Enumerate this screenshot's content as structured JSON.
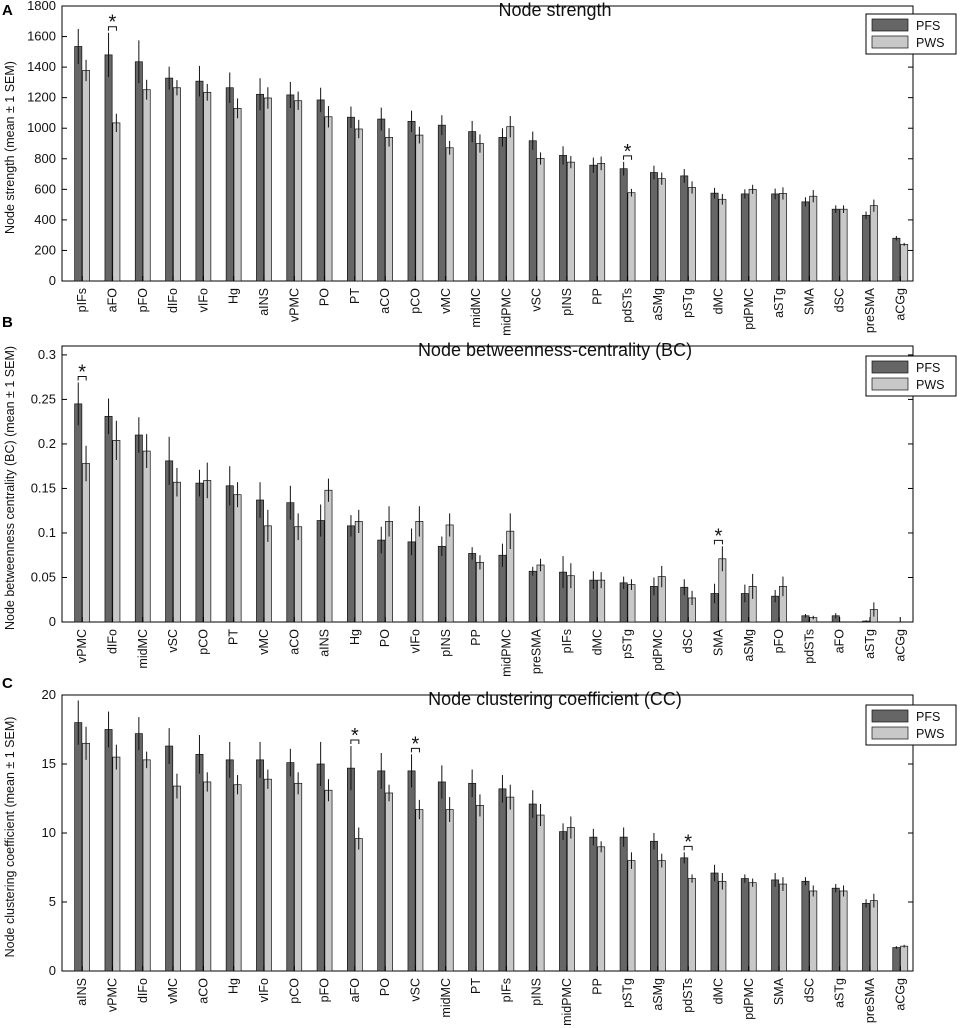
{
  "chart_data": [
    {
      "type": "bar",
      "panel": "A",
      "title": "Node strength",
      "ylabel": "Node strength (mean ± 1 SEM)",
      "ylim": [
        0,
        1800
      ],
      "yticks": [
        0,
        200,
        400,
        600,
        800,
        1000,
        1200,
        1400,
        1600,
        1800
      ],
      "legend": [
        "PFS",
        "PWS"
      ],
      "legend_position": "top-right",
      "categories": [
        "pIFs",
        "aFO",
        "pFO",
        "dIFo",
        "vIFo",
        "Hg",
        "aINS",
        "vPMC",
        "PO",
        "PT",
        "aCO",
        "pCO",
        "vMC",
        "midMC",
        "midPMC",
        "vSC",
        "pINS",
        "PP",
        "pdSTs",
        "aSMg",
        "pSTg",
        "dMC",
        "pdPMC",
        "aSTg",
        "SMA",
        "dSC",
        "preSMA",
        "aCGg"
      ],
      "series": [
        {
          "name": "PFS",
          "color": "#666666",
          "values": [
            1535,
            1480,
            1435,
            1328,
            1308,
            1265,
            1222,
            1218,
            1185,
            1072,
            1060,
            1045,
            1020,
            978,
            940,
            918,
            822,
            758,
            735,
            710,
            688,
            575,
            570,
            570,
            518,
            470,
            430,
            280
          ],
          "errors": [
            115,
            145,
            140,
            75,
            100,
            100,
            105,
            85,
            80,
            70,
            75,
            70,
            65,
            70,
            60,
            60,
            60,
            50,
            45,
            45,
            45,
            35,
            30,
            35,
            30,
            25,
            25,
            15
          ]
        },
        {
          "name": "PWS",
          "color": "#c8c8c8",
          "values": [
            1378,
            1035,
            1252,
            1265,
            1235,
            1130,
            1198,
            1180,
            1075,
            995,
            940,
            955,
            872,
            900,
            1010,
            802,
            778,
            770,
            578,
            670,
            612,
            535,
            600,
            573,
            555,
            470,
            493,
            240
          ],
          "errors": [
            70,
            60,
            65,
            50,
            55,
            65,
            70,
            60,
            70,
            60,
            60,
            55,
            45,
            60,
            70,
            40,
            40,
            45,
            25,
            40,
            40,
            35,
            30,
            40,
            40,
            25,
            40,
            10
          ]
        }
      ],
      "significant": [
        "aFO",
        "pdSTs"
      ]
    },
    {
      "type": "bar",
      "panel": "B",
      "title": "Node betweenness-centrality (BC)",
      "ylabel": "Node betweenness centrality (BC) (mean ± 1 SEM)",
      "ylim": [
        0,
        0.31
      ],
      "yticks": [
        0,
        0.05,
        0.1,
        0.15,
        0.2,
        0.25,
        0.3
      ],
      "legend": [
        "PFS",
        "PWS"
      ],
      "legend_position": "top-right",
      "categories": [
        "vPMC",
        "dIFo",
        "midMC",
        "vSC",
        "pCO",
        "PT",
        "vMC",
        "aCO",
        "aINS",
        "Hg",
        "PO",
        "vIFo",
        "pINS",
        "PP",
        "midPMC",
        "preSMA",
        "pIFs",
        "dMC",
        "pSTg",
        "pdPMC",
        "dSC",
        "SMA",
        "aSMg",
        "pFO",
        "pdSTs",
        "aFO",
        "aSTg",
        "aCGg"
      ],
      "series": [
        {
          "name": "PFS",
          "color": "#666666",
          "values": [
            0.245,
            0.231,
            0.21,
            0.181,
            0.156,
            0.153,
            0.137,
            0.134,
            0.114,
            0.108,
            0.092,
            0.09,
            0.085,
            0.077,
            0.075,
            0.057,
            0.056,
            0.047,
            0.044,
            0.04,
            0.039,
            0.032,
            0.032,
            0.029,
            0.007,
            0.007,
            0.001,
            0
          ],
          "errors": [
            0.024,
            0.02,
            0.02,
            0.027,
            0.015,
            0.022,
            0.02,
            0.019,
            0.018,
            0.012,
            0.015,
            0.015,
            0.011,
            0.007,
            0.013,
            0.005,
            0.018,
            0.01,
            0.007,
            0.01,
            0.009,
            0.011,
            0.01,
            0.007,
            0.002,
            0.003,
            0.001,
            0
          ]
        },
        {
          "name": "PWS",
          "color": "#c8c8c8",
          "values": [
            0.178,
            0.204,
            0.192,
            0.157,
            0.159,
            0.143,
            0.108,
            0.107,
            0.148,
            0.113,
            0.113,
            0.113,
            0.109,
            0.067,
            0.102,
            0.064,
            0.052,
            0.047,
            0.042,
            0.051,
            0.027,
            0.071,
            0.04,
            0.04,
            0.005,
            0,
            0.014,
            0
          ],
          "errors": [
            0.02,
            0.022,
            0.019,
            0.016,
            0.02,
            0.014,
            0.018,
            0.015,
            0.013,
            0.013,
            0.017,
            0.017,
            0.013,
            0.008,
            0.02,
            0.007,
            0.014,
            0.009,
            0.006,
            0.012,
            0.008,
            0.014,
            0.014,
            0.011,
            0.002,
            0,
            0.008,
            0
          ]
        }
      ],
      "significant": [
        "vPMC",
        "SMA"
      ]
    },
    {
      "type": "bar",
      "panel": "C",
      "title": "Node clustering coefficient (CC)",
      "ylabel": "Node clustering coefficient (mean ± 1 SEM)",
      "ylim": [
        0,
        20
      ],
      "yticks": [
        0,
        5,
        10,
        15,
        20
      ],
      "legend": [
        "PFS",
        "PWS"
      ],
      "legend_position": "top-right",
      "categories": [
        "aINS",
        "vPMC",
        "dIFo",
        "vMC",
        "aCO",
        "Hg",
        "vIFo",
        "pCO",
        "pFO",
        "aFO",
        "PO",
        "vSC",
        "midMC",
        "PT",
        "pIFs",
        "pINS",
        "midPMC",
        "PP",
        "pSTg",
        "aSMg",
        "pdSTs",
        "dMC",
        "pdPMC",
        "SMA",
        "dSC",
        "aSTg",
        "preSMA",
        "aCGg"
      ],
      "series": [
        {
          "name": "PFS",
          "color": "#666666",
          "values": [
            18.0,
            17.5,
            17.2,
            16.3,
            15.7,
            15.3,
            15.3,
            15.1,
            15.0,
            14.7,
            14.5,
            14.5,
            13.7,
            13.6,
            13.2,
            12.1,
            10.1,
            9.7,
            9.7,
            9.4,
            8.2,
            7.1,
            6.7,
            6.6,
            6.5,
            6.0,
            4.9,
            1.7
          ],
          "errors": [
            1.6,
            1.3,
            1.2,
            1.3,
            1.4,
            1.3,
            1.3,
            1.0,
            1.6,
            1.6,
            1.3,
            1.2,
            1.2,
            1.0,
            1.0,
            1.0,
            0.6,
            0.6,
            0.7,
            0.6,
            0.4,
            0.6,
            0.3,
            0.5,
            0.3,
            0.3,
            0.3,
            0.1
          ]
        },
        {
          "name": "PWS",
          "color": "#c8c8c8",
          "values": [
            16.5,
            15.5,
            15.3,
            13.4,
            13.7,
            13.5,
            13.9,
            13.6,
            13.1,
            9.6,
            12.9,
            11.7,
            11.7,
            12.0,
            12.6,
            11.3,
            10.4,
            9.0,
            8.0,
            8.0,
            6.7,
            6.5,
            6.4,
            6.3,
            5.8,
            5.8,
            5.1,
            1.8
          ],
          "errors": [
            1.2,
            0.9,
            0.6,
            0.9,
            0.7,
            0.7,
            0.7,
            0.8,
            0.8,
            0.8,
            0.6,
            0.7,
            0.9,
            0.8,
            0.9,
            0.8,
            0.8,
            0.4,
            0.6,
            0.5,
            0.3,
            0.6,
            0.3,
            0.5,
            0.4,
            0.4,
            0.5,
            0.1
          ]
        }
      ],
      "significant": [
        "aFO",
        "vSC",
        "pdSTs"
      ]
    }
  ]
}
